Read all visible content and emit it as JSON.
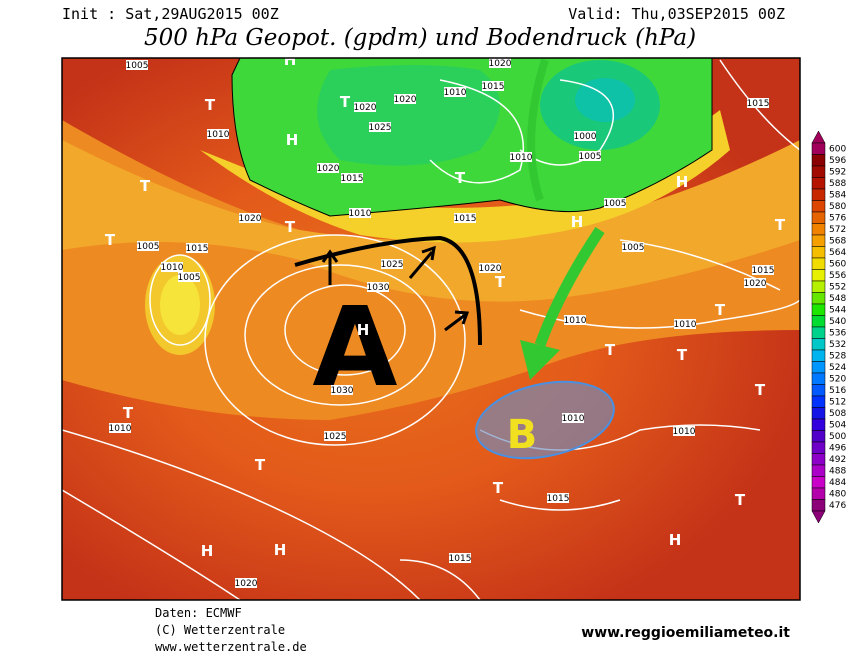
{
  "header": {
    "init": "Init : Sat,29AUG2015 00Z",
    "valid": "Valid: Thu,03SEP2015 00Z",
    "title": "500 hPa Geopot. (gpdm) und Bodendruck (hPa)"
  },
  "map": {
    "isobar_labels": [
      1005,
      1020,
      1015,
      1010,
      1020,
      1020,
      1025,
      1010,
      1000,
      1005,
      1010,
      1020,
      1015,
      1020,
      1010,
      1015,
      1005,
      1015,
      1010,
      1005,
      1025,
      1030,
      1020,
      1005,
      1015,
      1020,
      1010,
      1010,
      1030,
      1010,
      1025,
      1010,
      1010,
      1015,
      1015,
      1020,
      1015,
      1005
    ],
    "pressure_centers": [
      "H",
      "T",
      "T",
      "T",
      "H",
      "T",
      "T",
      "T",
      "H",
      "H",
      "T",
      "T",
      "T",
      "T",
      "T",
      "T",
      "T",
      "T",
      "H",
      "T",
      "H",
      "T",
      "H",
      "H"
    ],
    "high_label": "A",
    "low_label": "B"
  },
  "colorbar": {
    "ticks": [
      600,
      596,
      592,
      588,
      584,
      580,
      576,
      572,
      568,
      564,
      560,
      556,
      552,
      548,
      544,
      540,
      536,
      532,
      528,
      524,
      520,
      516,
      512,
      508,
      504,
      500,
      496,
      492,
      488,
      484,
      480,
      476
    ],
    "colors": [
      "#a0005a",
      "#8b0000",
      "#a00a00",
      "#b41400",
      "#c82800",
      "#dc4600",
      "#e66400",
      "#f08200",
      "#f5a000",
      "#f5be00",
      "#f0dc00",
      "#e6f000",
      "#b4f000",
      "#64e600",
      "#1ee600",
      "#00dc32",
      "#00d28c",
      "#00c8c8",
      "#00b4f0",
      "#0096ff",
      "#0078ff",
      "#005aff",
      "#0032ff",
      "#1414e6",
      "#3200dc",
      "#5000c8",
      "#6e00c8",
      "#8c00c8",
      "#aa00c8",
      "#c800c8",
      "#b400aa",
      "#8c0078"
    ]
  },
  "footer": {
    "source": "Daten: ECMWF",
    "copyright": "(C) Wetterzentrale",
    "url": "www.wetterzentrale.de",
    "site": "www.reggioemiliameteo.it"
  }
}
